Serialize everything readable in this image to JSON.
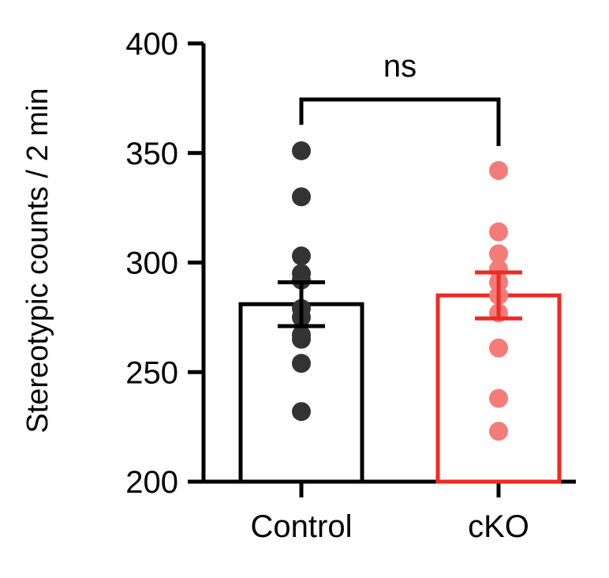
{
  "chart_data": {
    "type": "bar",
    "ylabel": "Stereotypic counts / 2 min",
    "ylim": [
      200,
      400
    ],
    "yticks": [
      200,
      250,
      300,
      350,
      400
    ],
    "categories": [
      "Control",
      "cKO"
    ],
    "series": [
      {
        "category": "Control",
        "mean": 281,
        "sem": 10,
        "bar_color": "#000000",
        "point_color": "#333333",
        "points": [
          351,
          330,
          303,
          295,
          292,
          279,
          275,
          267,
          265,
          254,
          232
        ]
      },
      {
        "category": "cKO",
        "mean": 285,
        "sem": 10.5,
        "bar_color": "#ee2a24",
        "point_color": "#f47c78",
        "points": [
          342,
          314,
          304,
          297,
          291,
          285,
          277,
          261,
          238,
          223
        ]
      }
    ],
    "significance": {
      "label": "ns",
      "between": [
        "Control",
        "cKO"
      ]
    }
  }
}
